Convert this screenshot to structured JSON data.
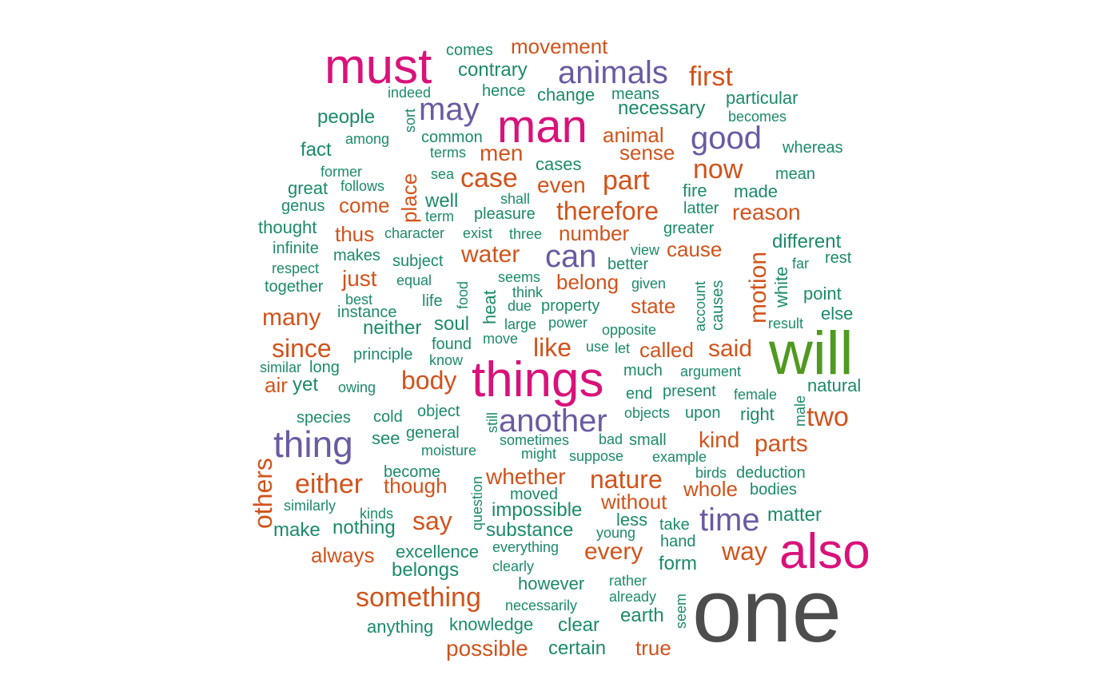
{
  "chart_data": {
    "type": "wordcloud",
    "title": "",
    "palette": {
      "grey": "#4d4d4d",
      "green": "#4f9a1f",
      "pink": "#d9127b",
      "purple": "#6a5aa2",
      "orange": "#d1531b",
      "teal": "#1b8a6b"
    },
    "words": [
      {
        "text": "one",
        "size": 112,
        "color": "grey"
      },
      {
        "text": "will",
        "size": 76,
        "color": "green"
      },
      {
        "text": "also",
        "size": 62,
        "color": "pink"
      },
      {
        "text": "things",
        "size": 62,
        "color": "pink"
      },
      {
        "text": "must",
        "size": 62,
        "color": "pink"
      },
      {
        "text": "man",
        "size": 58,
        "color": "pink"
      },
      {
        "text": "thing",
        "size": 46,
        "color": "purple"
      },
      {
        "text": "another",
        "size": 40,
        "color": "purple"
      },
      {
        "text": "animals",
        "size": 40,
        "color": "purple"
      },
      {
        "text": "good",
        "size": 40,
        "color": "purple"
      },
      {
        "text": "time",
        "size": 40,
        "color": "purple"
      },
      {
        "text": "can",
        "size": 40,
        "color": "purple"
      },
      {
        "text": "may",
        "size": 40,
        "color": "purple"
      },
      {
        "text": "something",
        "size": 34,
        "color": "orange"
      },
      {
        "text": "either",
        "size": 34,
        "color": "orange"
      },
      {
        "text": "since",
        "size": 32,
        "color": "orange"
      },
      {
        "text": "nature",
        "size": 32,
        "color": "orange"
      },
      {
        "text": "way",
        "size": 32,
        "color": "orange"
      },
      {
        "text": "say",
        "size": 32,
        "color": "orange"
      },
      {
        "text": "two",
        "size": 34,
        "color": "orange"
      },
      {
        "text": "case",
        "size": 34,
        "color": "orange"
      },
      {
        "text": "part",
        "size": 34,
        "color": "orange"
      },
      {
        "text": "now",
        "size": 34,
        "color": "orange"
      },
      {
        "text": "first",
        "size": 34,
        "color": "orange"
      },
      {
        "text": "body",
        "size": 32,
        "color": "orange"
      },
      {
        "text": "like",
        "size": 32,
        "color": "orange"
      },
      {
        "text": "therefore",
        "size": 32,
        "color": "orange"
      },
      {
        "text": "others",
        "size": 32,
        "color": "orange"
      },
      {
        "text": "parts",
        "size": 30,
        "color": "orange"
      },
      {
        "text": "motion",
        "size": 30,
        "color": "orange"
      },
      {
        "text": "many",
        "size": 30,
        "color": "orange"
      },
      {
        "text": "said",
        "size": 30,
        "color": "orange"
      },
      {
        "text": "water",
        "size": 30,
        "color": "orange"
      },
      {
        "text": "every",
        "size": 30,
        "color": "orange"
      },
      {
        "text": "kind",
        "size": 28,
        "color": "orange"
      },
      {
        "text": "reason",
        "size": 28,
        "color": "orange"
      },
      {
        "text": "just",
        "size": 28,
        "color": "orange"
      },
      {
        "text": "whether",
        "size": 28,
        "color": "orange"
      },
      {
        "text": "without",
        "size": 26,
        "color": "orange"
      },
      {
        "text": "possible",
        "size": 28,
        "color": "orange"
      },
      {
        "text": "movement",
        "size": 26,
        "color": "orange"
      },
      {
        "text": "men",
        "size": 28,
        "color": "orange"
      },
      {
        "text": "even",
        "size": 28,
        "color": "orange"
      },
      {
        "text": "whole",
        "size": 26,
        "color": "orange"
      },
      {
        "text": "though",
        "size": 26,
        "color": "orange"
      },
      {
        "text": "always",
        "size": 26,
        "color": "orange"
      },
      {
        "text": "true",
        "size": 26,
        "color": "orange"
      },
      {
        "text": "number",
        "size": 26,
        "color": "orange"
      },
      {
        "text": "animal",
        "size": 26,
        "color": "orange"
      },
      {
        "text": "sense",
        "size": 26,
        "color": "orange"
      },
      {
        "text": "belong",
        "size": 26,
        "color": "orange"
      },
      {
        "text": "called",
        "size": 26,
        "color": "orange"
      },
      {
        "text": "state",
        "size": 26,
        "color": "orange"
      },
      {
        "text": "cause",
        "size": 26,
        "color": "orange"
      },
      {
        "text": "thus",
        "size": 26,
        "color": "orange"
      },
      {
        "text": "come",
        "size": 26,
        "color": "orange"
      },
      {
        "text": "air",
        "size": 26,
        "color": "orange"
      },
      {
        "text": "place",
        "size": 26,
        "color": "orange"
      },
      {
        "text": "yet",
        "size": 24,
        "color": "teal"
      },
      {
        "text": "matter",
        "size": 24,
        "color": "teal"
      },
      {
        "text": "different",
        "size": 24,
        "color": "teal"
      },
      {
        "text": "point",
        "size": 22,
        "color": "teal"
      },
      {
        "text": "else",
        "size": 22,
        "color": "teal"
      },
      {
        "text": "natural",
        "size": 22,
        "color": "teal"
      },
      {
        "text": "contrary",
        "size": 24,
        "color": "teal"
      },
      {
        "text": "necessary",
        "size": 24,
        "color": "teal"
      },
      {
        "text": "people",
        "size": 24,
        "color": "teal"
      },
      {
        "text": "fact",
        "size": 24,
        "color": "teal"
      },
      {
        "text": "well",
        "size": 24,
        "color": "teal"
      },
      {
        "text": "neither",
        "size": 24,
        "color": "teal"
      },
      {
        "text": "soul",
        "size": 24,
        "color": "teal"
      },
      {
        "text": "impossible",
        "size": 24,
        "color": "teal"
      },
      {
        "text": "substance",
        "size": 24,
        "color": "teal"
      },
      {
        "text": "nothing",
        "size": 24,
        "color": "teal"
      },
      {
        "text": "make",
        "size": 24,
        "color": "teal"
      },
      {
        "text": "belongs",
        "size": 24,
        "color": "teal"
      },
      {
        "text": "form",
        "size": 24,
        "color": "teal"
      },
      {
        "text": "earth",
        "size": 24,
        "color": "teal"
      },
      {
        "text": "clear",
        "size": 24,
        "color": "teal"
      },
      {
        "text": "certain",
        "size": 24,
        "color": "teal"
      },
      {
        "text": "anything",
        "size": 22,
        "color": "teal"
      },
      {
        "text": "knowledge",
        "size": 22,
        "color": "teal"
      },
      {
        "text": "however",
        "size": 22,
        "color": "teal"
      },
      {
        "text": "excellence",
        "size": 22,
        "color": "teal"
      },
      {
        "text": "see",
        "size": 22,
        "color": "teal"
      },
      {
        "text": "right",
        "size": 22,
        "color": "teal"
      },
      {
        "text": "heat",
        "size": 22,
        "color": "teal"
      },
      {
        "text": "white",
        "size": 22,
        "color": "teal"
      },
      {
        "text": "causes",
        "size": 20,
        "color": "teal"
      },
      {
        "text": "cases",
        "size": 22,
        "color": "teal"
      },
      {
        "text": "made",
        "size": 22,
        "color": "teal"
      },
      {
        "text": "fire",
        "size": 22,
        "color": "teal"
      },
      {
        "text": "thought",
        "size": 22,
        "color": "teal"
      },
      {
        "text": "great",
        "size": 22,
        "color": "teal"
      },
      {
        "text": "change",
        "size": 22,
        "color": "teal"
      },
      {
        "text": "particular",
        "size": 22,
        "color": "teal"
      },
      {
        "text": "whereas",
        "size": 20,
        "color": "teal"
      },
      {
        "text": "mean",
        "size": 20,
        "color": "teal"
      },
      {
        "text": "comes",
        "size": 20,
        "color": "teal"
      },
      {
        "text": "hence",
        "size": 20,
        "color": "teal"
      },
      {
        "text": "means",
        "size": 20,
        "color": "teal"
      },
      {
        "text": "indeed",
        "size": 18,
        "color": "teal"
      },
      {
        "text": "sort",
        "size": 18,
        "color": "teal"
      },
      {
        "text": "common",
        "size": 20,
        "color": "teal"
      },
      {
        "text": "among",
        "size": 18,
        "color": "teal"
      },
      {
        "text": "becomes",
        "size": 18,
        "color": "teal"
      },
      {
        "text": "terms",
        "size": 18,
        "color": "teal"
      },
      {
        "text": "former",
        "size": 18,
        "color": "teal"
      },
      {
        "text": "follows",
        "size": 18,
        "color": "teal"
      },
      {
        "text": "sea",
        "size": 18,
        "color": "teal"
      },
      {
        "text": "shall",
        "size": 18,
        "color": "teal"
      },
      {
        "text": "genus",
        "size": 20,
        "color": "teal"
      },
      {
        "text": "term",
        "size": 18,
        "color": "teal"
      },
      {
        "text": "pleasure",
        "size": 20,
        "color": "teal"
      },
      {
        "text": "latter",
        "size": 20,
        "color": "teal"
      },
      {
        "text": "infinite",
        "size": 20,
        "color": "teal"
      },
      {
        "text": "character",
        "size": 18,
        "color": "teal"
      },
      {
        "text": "exist",
        "size": 18,
        "color": "teal"
      },
      {
        "text": "three",
        "size": 18,
        "color": "teal"
      },
      {
        "text": "greater",
        "size": 20,
        "color": "teal"
      },
      {
        "text": "respect",
        "size": 18,
        "color": "teal"
      },
      {
        "text": "makes",
        "size": 20,
        "color": "teal"
      },
      {
        "text": "subject",
        "size": 20,
        "color": "teal"
      },
      {
        "text": "view",
        "size": 18,
        "color": "teal"
      },
      {
        "text": "better",
        "size": 20,
        "color": "teal"
      },
      {
        "text": "far",
        "size": 18,
        "color": "teal"
      },
      {
        "text": "rest",
        "size": 20,
        "color": "teal"
      },
      {
        "text": "together",
        "size": 20,
        "color": "teal"
      },
      {
        "text": "equal",
        "size": 18,
        "color": "teal"
      },
      {
        "text": "food",
        "size": 18,
        "color": "teal"
      },
      {
        "text": "seems",
        "size": 18,
        "color": "teal"
      },
      {
        "text": "think",
        "size": 18,
        "color": "teal"
      },
      {
        "text": "given",
        "size": 18,
        "color": "teal"
      },
      {
        "text": "account",
        "size": 18,
        "color": "teal"
      },
      {
        "text": "best",
        "size": 18,
        "color": "teal"
      },
      {
        "text": "life",
        "size": 20,
        "color": "teal"
      },
      {
        "text": "due",
        "size": 18,
        "color": "teal"
      },
      {
        "text": "property",
        "size": 20,
        "color": "teal"
      },
      {
        "text": "instance",
        "size": 20,
        "color": "teal"
      },
      {
        "text": "large",
        "size": 18,
        "color": "teal"
      },
      {
        "text": "power",
        "size": 18,
        "color": "teal"
      },
      {
        "text": "opposite",
        "size": 18,
        "color": "teal"
      },
      {
        "text": "result",
        "size": 18,
        "color": "teal"
      },
      {
        "text": "move",
        "size": 18,
        "color": "teal"
      },
      {
        "text": "found",
        "size": 20,
        "color": "teal"
      },
      {
        "text": "use",
        "size": 18,
        "color": "teal"
      },
      {
        "text": "let",
        "size": 18,
        "color": "teal"
      },
      {
        "text": "principle",
        "size": 20,
        "color": "teal"
      },
      {
        "text": "know",
        "size": 18,
        "color": "teal"
      },
      {
        "text": "similar",
        "size": 18,
        "color": "teal"
      },
      {
        "text": "long",
        "size": 20,
        "color": "teal"
      },
      {
        "text": "much",
        "size": 20,
        "color": "teal"
      },
      {
        "text": "argument",
        "size": 18,
        "color": "teal"
      },
      {
        "text": "owing",
        "size": 18,
        "color": "teal"
      },
      {
        "text": "end",
        "size": 20,
        "color": "teal"
      },
      {
        "text": "present",
        "size": 20,
        "color": "teal"
      },
      {
        "text": "female",
        "size": 18,
        "color": "teal"
      },
      {
        "text": "male",
        "size": 18,
        "color": "teal"
      },
      {
        "text": "species",
        "size": 20,
        "color": "teal"
      },
      {
        "text": "cold",
        "size": 20,
        "color": "teal"
      },
      {
        "text": "object",
        "size": 20,
        "color": "teal"
      },
      {
        "text": "still",
        "size": 18,
        "color": "teal"
      },
      {
        "text": "objects",
        "size": 18,
        "color": "teal"
      },
      {
        "text": "upon",
        "size": 20,
        "color": "teal"
      },
      {
        "text": "general",
        "size": 20,
        "color": "teal"
      },
      {
        "text": "moisture",
        "size": 18,
        "color": "teal"
      },
      {
        "text": "sometimes",
        "size": 18,
        "color": "teal"
      },
      {
        "text": "bad",
        "size": 18,
        "color": "teal"
      },
      {
        "text": "small",
        "size": 20,
        "color": "teal"
      },
      {
        "text": "might",
        "size": 18,
        "color": "teal"
      },
      {
        "text": "suppose",
        "size": 18,
        "color": "teal"
      },
      {
        "text": "example",
        "size": 18,
        "color": "teal"
      },
      {
        "text": "become",
        "size": 20,
        "color": "teal"
      },
      {
        "text": "question",
        "size": 18,
        "color": "teal"
      },
      {
        "text": "birds",
        "size": 18,
        "color": "teal"
      },
      {
        "text": "deduction",
        "size": 20,
        "color": "teal"
      },
      {
        "text": "moved",
        "size": 20,
        "color": "teal"
      },
      {
        "text": "bodies",
        "size": 20,
        "color": "teal"
      },
      {
        "text": "similarly",
        "size": 18,
        "color": "teal"
      },
      {
        "text": "kinds",
        "size": 18,
        "color": "teal"
      },
      {
        "text": "less",
        "size": 22,
        "color": "teal"
      },
      {
        "text": "take",
        "size": 20,
        "color": "teal"
      },
      {
        "text": "young",
        "size": 18,
        "color": "teal"
      },
      {
        "text": "hand",
        "size": 20,
        "color": "teal"
      },
      {
        "text": "everything",
        "size": 18,
        "color": "teal"
      },
      {
        "text": "clearly",
        "size": 18,
        "color": "teal"
      },
      {
        "text": "rather",
        "size": 18,
        "color": "teal"
      },
      {
        "text": "already",
        "size": 18,
        "color": "teal"
      },
      {
        "text": "seem",
        "size": 18,
        "color": "teal"
      },
      {
        "text": "necessarily",
        "size": 18,
        "color": "teal"
      }
    ]
  }
}
